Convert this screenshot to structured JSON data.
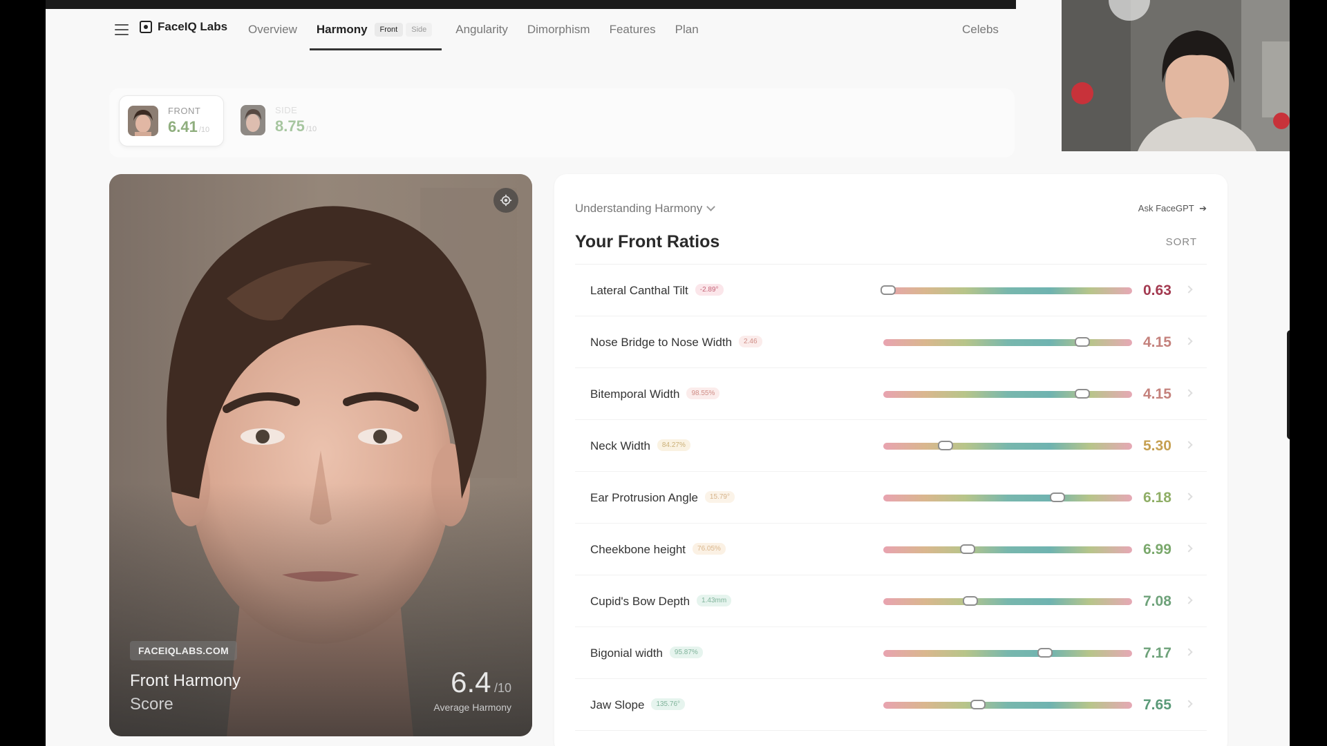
{
  "nav": {
    "brand": "FaceIQ Labs",
    "links": [
      "Overview",
      "Angularity",
      "Dimorphism",
      "Features",
      "Plan"
    ],
    "active": {
      "label": "Harmony",
      "pills": [
        "Front",
        "Side"
      ]
    },
    "right": "Celebs"
  },
  "scores": {
    "front": {
      "label": "FRONT",
      "value": "6.41",
      "suffix": "/10"
    },
    "side": {
      "label": "SIDE",
      "value": "8.75",
      "suffix": "/10"
    }
  },
  "photo": {
    "site_tag": "FACEIQLABS.COM",
    "title": "Front Harmony",
    "subtitle": "Score",
    "score": "6.4",
    "score_suffix": "/10",
    "score_caption": "Average Harmony"
  },
  "panel": {
    "dropdown": "Understanding Harmony",
    "ask": "Ask FaceGPT",
    "title": "Your Front Ratios",
    "sort": "SORT"
  },
  "ratios": [
    {
      "name": "Lateral Canthal Tilt",
      "badge": "-2.89°",
      "value": "0.63",
      "position": 0.02,
      "color": "#a33a50",
      "badge_bg": "#fbe6ea",
      "badge_fg": "#c46377"
    },
    {
      "name": "Nose Bridge to Nose Width",
      "badge": "2.46",
      "value": "4.15",
      "position": 0.8,
      "color": "#c4817c",
      "badge_bg": "#fbeceb",
      "badge_fg": "#cf8d86"
    },
    {
      "name": "Bitemporal Width",
      "badge": "98.55%",
      "value": "4.15",
      "position": 0.8,
      "color": "#c4817c",
      "badge_bg": "#fbeceb",
      "badge_fg": "#cf8d86"
    },
    {
      "name": "Neck Width",
      "badge": "84.27%",
      "value": "5.30",
      "position": 0.25,
      "color": "#c6a052",
      "badge_bg": "#faf2e2",
      "badge_fg": "#cbb078"
    },
    {
      "name": "Ear Protrusion Angle",
      "badge": "15.79°",
      "value": "6.18",
      "position": 0.7,
      "color": "#8fae66",
      "badge_bg": "#fbf3e8",
      "badge_fg": "#d6b38a"
    },
    {
      "name": "Cheekbone height",
      "badge": "76.05%",
      "value": "6.99",
      "position": 0.34,
      "color": "#7aa86c",
      "badge_bg": "#fbf1e4",
      "badge_fg": "#d9b68c"
    },
    {
      "name": "Cupid's Bow Depth",
      "badge": "1.43mm",
      "value": "7.08",
      "position": 0.35,
      "color": "#6ea27a",
      "badge_bg": "#e6f4ee",
      "badge_fg": "#7fb39a"
    },
    {
      "name": "Bigonial width",
      "badge": "95.87%",
      "value": "7.17",
      "position": 0.65,
      "color": "#6ea27a",
      "badge_bg": "#e6f4ee",
      "badge_fg": "#7fb39a"
    },
    {
      "name": "Jaw Slope",
      "badge": "135.76°",
      "value": "7.65",
      "position": 0.38,
      "color": "#5a9a78",
      "badge_bg": "#e6f4ee",
      "badge_fg": "#7fb39a"
    }
  ],
  "colors": {
    "bar_gradient": [
      "#e8a3b0",
      "#d9b78e",
      "#b7c58a",
      "#78b7ad",
      "#6fb3b0",
      "#b7c58a",
      "#e6a8b5"
    ]
  },
  "icons": {
    "menu": "hamburger-icon",
    "logo": "faceiq-logo-icon",
    "settings": "gear-icon",
    "arrow": "arrow-right-icon",
    "chevron": "chevron-down-icon",
    "camera": "camera-icon",
    "video": "video-icon",
    "screen": "screen-icon",
    "tool_settings": "gear-icon"
  }
}
